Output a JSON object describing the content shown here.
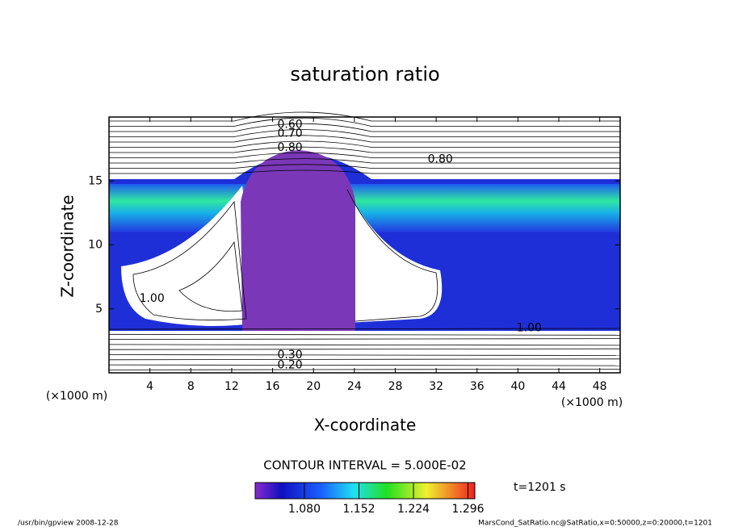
{
  "chart_data": {
    "type": "contour",
    "title": "saturation ratio",
    "x_label": "X-coordinate",
    "y_label": "Z-coordinate",
    "x_unit": "(×1000 m)",
    "y_unit": "(×1000 m)",
    "xlim": [
      0,
      50
    ],
    "xticks": [
      4,
      8,
      12,
      16,
      20,
      24,
      28,
      32,
      36,
      40,
      44,
      48
    ],
    "ylim": [
      0,
      20
    ],
    "yticks": [
      5,
      10,
      15
    ],
    "contour_labels": [
      {
        "label": "0.60",
        "x": 17.7,
        "y": 19.4
      },
      {
        "label": "0.70",
        "x": 17.7,
        "y": 18.7
      },
      {
        "label": "0.80",
        "x": 17.7,
        "y": 17.6
      },
      {
        "label": "0.80",
        "x": 32.4,
        "y": 16.7
      },
      {
        "label": "1.00",
        "x": 4.2,
        "y": 5.8
      },
      {
        "label": "1.00",
        "x": 41.1,
        "y": 3.5
      },
      {
        "label": "0.30",
        "x": 17.7,
        "y": 1.4
      },
      {
        "label": "0.20",
        "x": 17.7,
        "y": 0.6
      }
    ],
    "contour_interval": "CONTOUR INTERVAL = 5.000E-02",
    "clim": [
      1.015,
      1.305
    ],
    "cticks": [
      {
        "value": 1.08,
        "label": "1.080"
      },
      {
        "value": 1.152,
        "label": "1.152"
      },
      {
        "value": 1.224,
        "label": "1.224"
      },
      {
        "value": 1.296,
        "label": "1.296"
      }
    ],
    "time_label": "t=1201 s",
    "footer_left": "/usr/bin/gpview  2008-12-28",
    "footer_right": "MarsCond_SatRatio.nc@SatRatio,x=0:50000,z=0:20000,t=1201"
  }
}
